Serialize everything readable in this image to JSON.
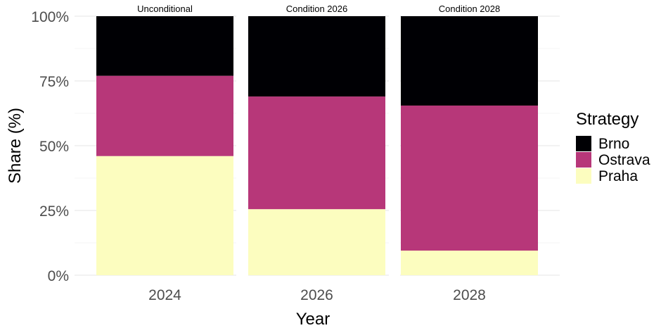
{
  "chart_data": {
    "type": "bar",
    "stacked": true,
    "xlabel": "Year",
    "ylabel": "Share (%)",
    "ylim": [
      0,
      100
    ],
    "y_ticks": [
      "0%",
      "25%",
      "50%",
      "75%",
      "100%"
    ],
    "y_tick_values": [
      0,
      25,
      50,
      75,
      100
    ],
    "grid": true,
    "legend": {
      "title": "Strategy",
      "position": "right",
      "entries": [
        "Brno",
        "Ostrava",
        "Praha"
      ]
    },
    "panels": [
      {
        "strip": "Unconditional",
        "category": "2024"
      },
      {
        "strip": "Condition 2026",
        "category": "2026"
      },
      {
        "strip": "Condition 2028",
        "category": "2028"
      }
    ],
    "categories": [
      "2024",
      "2026",
      "2028"
    ],
    "series": [
      {
        "name": "Praha",
        "color": "#fcfdbf",
        "values": [
          46,
          25.5,
          9.5
        ]
      },
      {
        "name": "Ostrava",
        "color": "#b73779",
        "values": [
          31,
          43.5,
          56
        ]
      },
      {
        "name": "Brno",
        "color": "#000004",
        "values": [
          23,
          31,
          34.5
        ]
      }
    ]
  }
}
